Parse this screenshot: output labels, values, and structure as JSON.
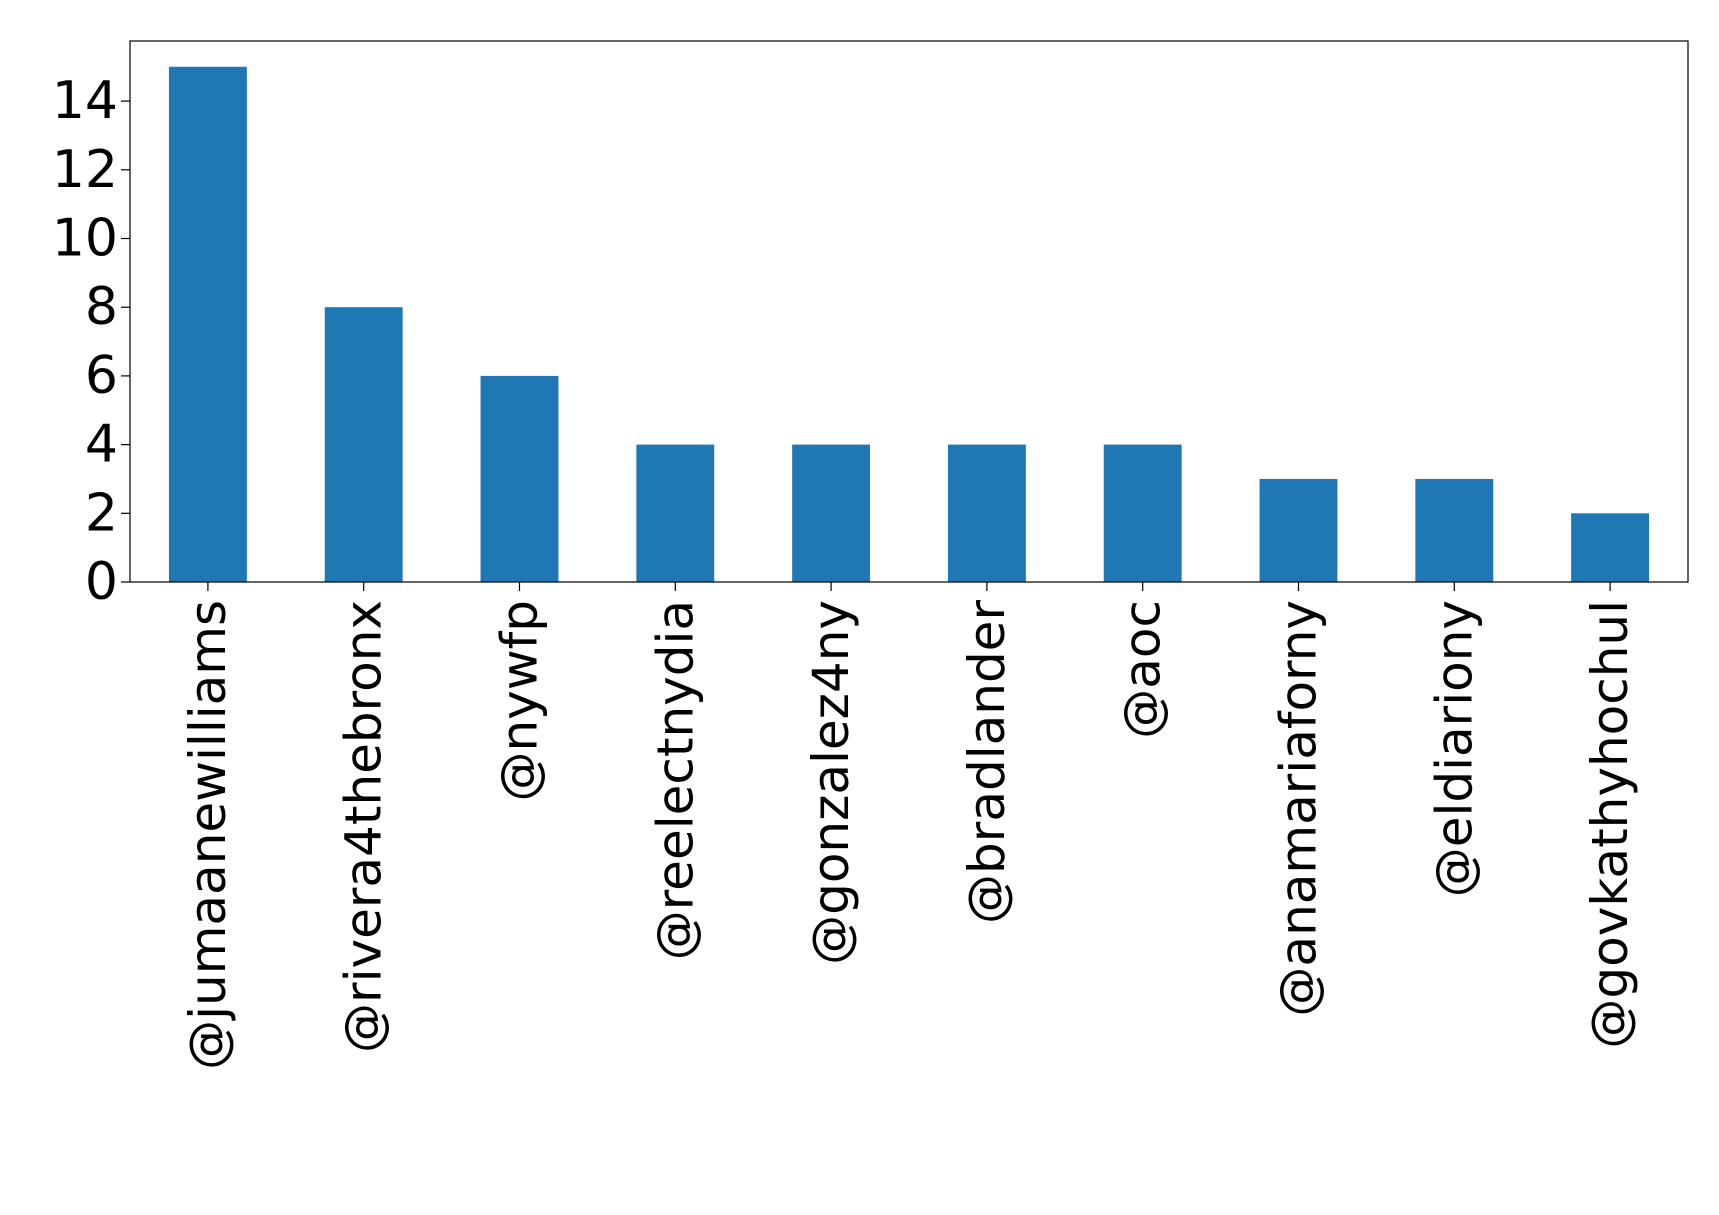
{
  "chart_data": {
    "type": "bar",
    "title": "",
    "xlabel": "",
    "ylabel": "",
    "categories": [
      "@jumaanewilliams",
      "@rivera4thebronx",
      "@nywfp",
      "@reelectnydia",
      "@gonzalez4ny",
      "@bradlander",
      "@aoc",
      "@anamariaforny",
      "@eldiariony",
      "@govkathyhochul"
    ],
    "values": [
      15,
      8,
      6,
      4,
      4,
      4,
      4,
      3,
      3,
      2
    ],
    "ylim": [
      0,
      15.75
    ],
    "yticks": [
      0,
      2,
      4,
      6,
      8,
      10,
      12,
      14
    ],
    "ytick_labels": [
      "0",
      "2",
      "4",
      "6",
      "8",
      "10",
      "12",
      "14"
    ],
    "bar_color": "#1f77b4",
    "grid": false,
    "legend": "none"
  }
}
